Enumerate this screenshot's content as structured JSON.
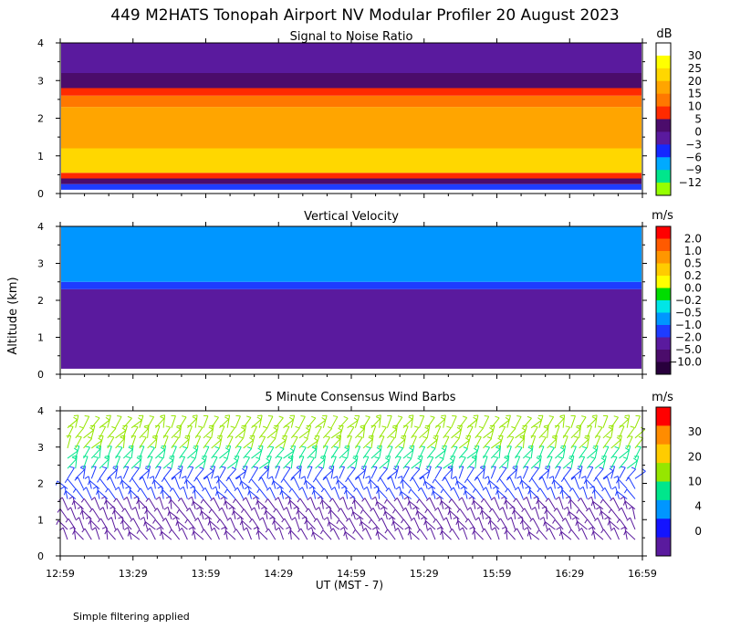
{
  "title": "449 M2HATS Tonopah Airport NV Modular Profiler 20 August 2023",
  "footnote": "Simple filtering applied",
  "y_axis_label": "Altitude (km)",
  "x_axis_label": "UT  (MST - 7)",
  "x_ticks": [
    "12:59",
    "13:29",
    "13:59",
    "14:29",
    "14:59",
    "15:29",
    "15:59",
    "16:29",
    "16:59"
  ],
  "chart_data": [
    {
      "type": "heatmap",
      "title": "Signal to Noise Ratio",
      "x": [
        "12:59",
        "13:29",
        "13:59",
        "14:29",
        "14:59",
        "15:29",
        "15:59",
        "16:29",
        "16:59"
      ],
      "ylim": [
        0,
        4
      ],
      "yticks": [
        0,
        1,
        2,
        3,
        4
      ],
      "colorbar": {
        "unit": "dB",
        "labels": [
          "30",
          "25",
          "20",
          "15",
          "10",
          "5",
          "0",
          "−3",
          "−6",
          "−9",
          "−12"
        ],
        "colors": [
          "#ffffff",
          "#ffff00",
          "#ffd700",
          "#ffa500",
          "#ff7800",
          "#ff2a00",
          "#4b0c6b",
          "#5a1a9e",
          "#1428ff",
          "#00aaff",
          "#00e68c",
          "#96ff00"
        ]
      },
      "bands": [
        {
          "from": 0.0,
          "to": 0.1,
          "color": "#ffffff"
        },
        {
          "from": 0.1,
          "to": 0.25,
          "color": "#1e3cff"
        },
        {
          "from": 0.25,
          "to": 0.4,
          "color": "#4b0c6b"
        },
        {
          "from": 0.4,
          "to": 0.55,
          "color": "#ff2a00"
        },
        {
          "from": 0.55,
          "to": 1.2,
          "color": "#ffd700"
        },
        {
          "from": 1.2,
          "to": 2.3,
          "color": "#ffa500"
        },
        {
          "from": 2.3,
          "to": 2.6,
          "color": "#ff7800"
        },
        {
          "from": 2.6,
          "to": 2.8,
          "color": "#ff2a00"
        },
        {
          "from": 2.8,
          "to": 3.2,
          "color": "#4b0c6b"
        },
        {
          "from": 3.2,
          "to": 4.0,
          "color": "#5a1a9e"
        }
      ]
    },
    {
      "type": "heatmap",
      "title": "Vertical Velocity",
      "x": [
        "12:59",
        "13:29",
        "13:59",
        "14:29",
        "14:59",
        "15:29",
        "15:59",
        "16:29",
        "16:59"
      ],
      "ylim": [
        0,
        4
      ],
      "yticks": [
        0,
        1,
        2,
        3,
        4
      ],
      "colorbar": {
        "unit": "m/s",
        "labels": [
          "2.0",
          "1.0",
          "0.5",
          "0.2",
          "0.0",
          "−0.2",
          "−0.5",
          "−1.0",
          "−2.0",
          "−5.0",
          "−10.0"
        ],
        "colors": [
          "#ff0000",
          "#ff5a00",
          "#ff9600",
          "#ffcc00",
          "#ffff00",
          "#00dd00",
          "#00e6e6",
          "#0096ff",
          "#1e3cff",
          "#5a1a9e",
          "#4b0c6b",
          "#28003c"
        ]
      },
      "bands": [
        {
          "from": 0.0,
          "to": 0.15,
          "color": "#ffffff"
        },
        {
          "from": 0.15,
          "to": 2.3,
          "color": "#5a1a9e"
        },
        {
          "from": 2.3,
          "to": 2.5,
          "color": "#1e3cff"
        },
        {
          "from": 2.5,
          "to": 4.0,
          "color": "#0096ff"
        }
      ]
    },
    {
      "type": "scatter",
      "title": "5 Minute Consensus Wind Barbs",
      "x": [
        "12:59",
        "13:29",
        "13:59",
        "14:29",
        "14:59",
        "15:29",
        "15:59",
        "16:29",
        "16:59"
      ],
      "ylim": [
        0,
        4
      ],
      "yticks": [
        0,
        1,
        2,
        3,
        4
      ],
      "colorbar": {
        "unit": "m/s",
        "labels": [
          "30",
          "20",
          "10",
          "4",
          "0"
        ],
        "colors": [
          "#ff0000",
          "#ff8c00",
          "#ffcc00",
          "#96e600",
          "#00e68c",
          "#0096ff",
          "#1414ff",
          "#5a1a9e"
        ]
      },
      "speed_profile_ms": [
        {
          "alt": 0.5,
          "speed": 4
        },
        {
          "alt": 1.0,
          "speed": 5
        },
        {
          "alt": 1.5,
          "speed": 5
        },
        {
          "alt": 2.0,
          "speed": 8
        },
        {
          "alt": 2.5,
          "speed": 11
        },
        {
          "alt": 3.0,
          "speed": 13
        },
        {
          "alt": 3.5,
          "speed": 12
        }
      ]
    }
  ]
}
